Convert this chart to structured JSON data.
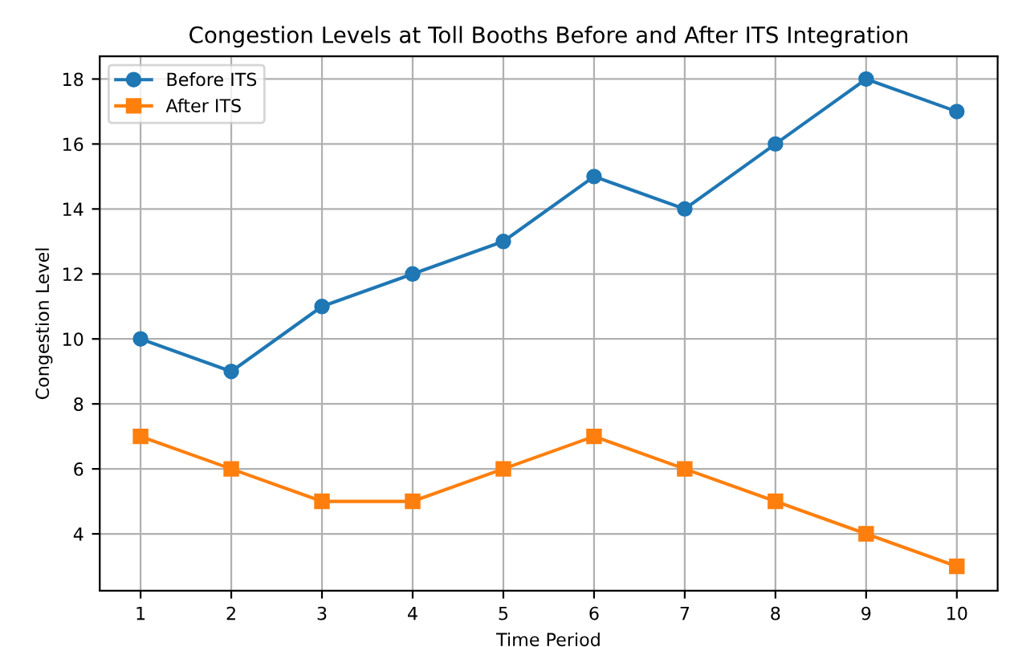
{
  "chart_data": {
    "type": "line",
    "title": "Congestion Levels at Toll Booths Before and After ITS Integration",
    "xlabel": "Time Period",
    "ylabel": "Congestion Level",
    "x": [
      1,
      2,
      3,
      4,
      5,
      6,
      7,
      8,
      9,
      10
    ],
    "series": [
      {
        "name": "Before ITS",
        "color": "#1f77b4",
        "marker": "circle",
        "values": [
          10,
          9,
          11,
          12,
          13,
          15,
          14,
          16,
          18,
          17
        ]
      },
      {
        "name": "After ITS",
        "color": "#ff7f0e",
        "marker": "square",
        "values": [
          7,
          6,
          5,
          5,
          6,
          7,
          6,
          5,
          4,
          3
        ]
      }
    ],
    "xlim": [
      0.55,
      10.45
    ],
    "xticks": [
      1,
      2,
      3,
      4,
      5,
      6,
      7,
      8,
      9,
      10
    ],
    "ylim": [
      2.25,
      18.7
    ],
    "yticks": [
      4,
      6,
      8,
      10,
      12,
      14,
      16,
      18
    ],
    "grid": true,
    "legend": "top left",
    "line_style": "solid"
  }
}
